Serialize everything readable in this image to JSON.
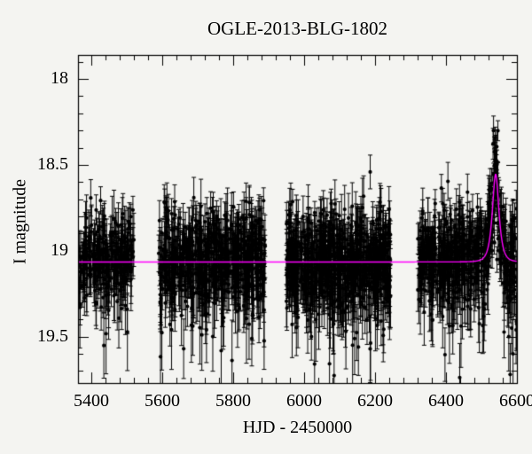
{
  "title": "OGLE-2013-BLG-1802",
  "axes": {
    "xlabel": "HJD - 2450000",
    "ylabel": "I magnitude",
    "x_range": [
      5362.5,
      6600
    ],
    "y_top_mag": 17.86,
    "y_bottom_mag": 19.77,
    "y_axis_inverted": true,
    "x_major_ticks": [
      {
        "value": 5400,
        "label": "5400"
      },
      {
        "value": 5600,
        "label": "5600"
      },
      {
        "value": 5800,
        "label": "5800"
      },
      {
        "value": 6000,
        "label": "6000"
      },
      {
        "value": 6200,
        "label": "6200"
      },
      {
        "value": 6400,
        "label": "6400"
      },
      {
        "value": 6600,
        "label": "6600"
      }
    ],
    "x_minor_step": 40,
    "y_major_ticks": [
      {
        "value": 18,
        "label": "18"
      },
      {
        "value": 18.5,
        "label": "18.5"
      },
      {
        "value": 19,
        "label": "19"
      },
      {
        "value": 19.5,
        "label": "19.5"
      }
    ],
    "y_minor_step": 0.1
  },
  "chart_data": {
    "type": "scatter",
    "description": "I-band microlensing light curve: black photometric points with error bars and magenta point-lens model curve",
    "colors": {
      "background": "#f4f4f1",
      "points": "#000000",
      "model_curve": "#ff00ff",
      "frame": "#000000"
    },
    "marker": "filled-circle-with-error-bars",
    "grid": false,
    "legend": null,
    "baseline_mag": 19.065,
    "model": {
      "kind": "paczynski",
      "t0": 6540,
      "tE_days": 13,
      "u0": 0.75,
      "peak_mag": 18.49,
      "baseline_mag": 19.065
    },
    "seasons": [
      {
        "hjd_start": 5365,
        "hjd_end": 5520,
        "n_points": 250,
        "mean_mag": 19.06,
        "scatter_sigma_mag": 0.13
      },
      {
        "hjd_start": 5590,
        "hjd_end": 5890,
        "n_points": 640,
        "mean_mag": 19.06,
        "scatter_sigma_mag": 0.14
      },
      {
        "hjd_start": 5950,
        "hjd_end": 6245,
        "n_points": 700,
        "mean_mag": 19.06,
        "scatter_sigma_mag": 0.14
      },
      {
        "hjd_start": 6320,
        "hjd_end": 6600,
        "n_points": 580,
        "mean_mag": 19.06,
        "scatter_sigma_mag": 0.14
      }
    ],
    "peak_points": [
      {
        "t": 6536.5,
        "mag": 18.95,
        "err": 0.07
      },
      {
        "t": 6538.0,
        "mag": 18.72,
        "err": 0.06
      },
      {
        "t": 6539.0,
        "mag": 18.34,
        "err": 0.06
      },
      {
        "t": 6539.5,
        "mag": 18.42,
        "err": 0.05
      },
      {
        "t": 6540.0,
        "mag": 18.47,
        "err": 0.05
      },
      {
        "t": 6540.5,
        "mag": 18.52,
        "err": 0.05
      },
      {
        "t": 6541.2,
        "mag": 18.55,
        "err": 0.05
      },
      {
        "t": 6542.0,
        "mag": 18.62,
        "err": 0.06
      },
      {
        "t": 6543.5,
        "mag": 18.74,
        "err": 0.06
      },
      {
        "t": 6545.0,
        "mag": 18.84,
        "err": 0.07
      },
      {
        "t": 6547.0,
        "mag": 18.93,
        "err": 0.07
      },
      {
        "t": 6549.5,
        "mag": 19.0,
        "err": 0.08
      }
    ],
    "faint_points": [
      {
        "t": 6577,
        "mag": 19.5,
        "err": 0.2
      },
      {
        "t": 6581,
        "mag": 19.72,
        "err": 0.18
      },
      {
        "t": 6585,
        "mag": 19.45,
        "err": 0.15
      },
      {
        "t": 6589,
        "mag": 19.6,
        "err": 0.2
      }
    ],
    "rng_seed": 1802
  }
}
